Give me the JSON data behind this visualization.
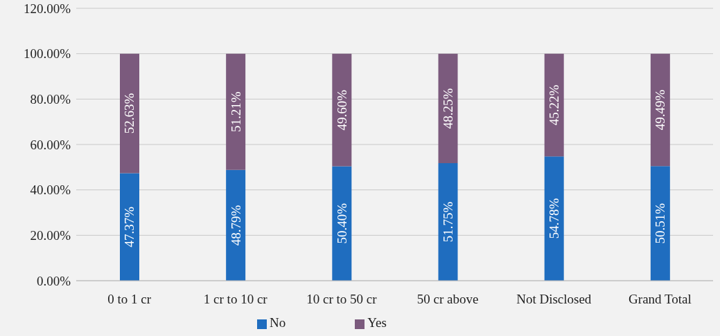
{
  "chart_data": {
    "type": "bar",
    "stacked": true,
    "categories": [
      "0 to 1 cr",
      "1 cr to 10 cr",
      "10 cr to 50 cr",
      "50 cr above",
      "Not Disclosed",
      "Grand Total"
    ],
    "series": [
      {
        "name": "No",
        "color": "#1f6dbf",
        "values": [
          47.37,
          48.79,
          50.4,
          51.75,
          54.78,
          50.51
        ],
        "value_labels": [
          "47.37%",
          "48.79%",
          "50.40%",
          "51.75%",
          "54.78%",
          "50.51%"
        ]
      },
      {
        "name": "Yes",
        "color": "#7b5a7d",
        "values": [
          52.63,
          51.21,
          49.6,
          48.25,
          45.22,
          49.49
        ],
        "value_labels": [
          "52.63%",
          "51.21%",
          "49.60%",
          "48.25%",
          "45.22%",
          "49.49%"
        ]
      }
    ],
    "ylim": [
      0,
      120
    ],
    "yticks": [
      {
        "value": 0,
        "label": "0.00%"
      },
      {
        "value": 20,
        "label": "20.00%"
      },
      {
        "value": 40,
        "label": "40.00%"
      },
      {
        "value": 60,
        "label": "60.00%"
      },
      {
        "value": 80,
        "label": "80.00%"
      },
      {
        "value": 100,
        "label": "100.00%"
      },
      {
        "value": 120,
        "label": "120.00%"
      }
    ],
    "grid": "y",
    "legend": "bottom"
  }
}
